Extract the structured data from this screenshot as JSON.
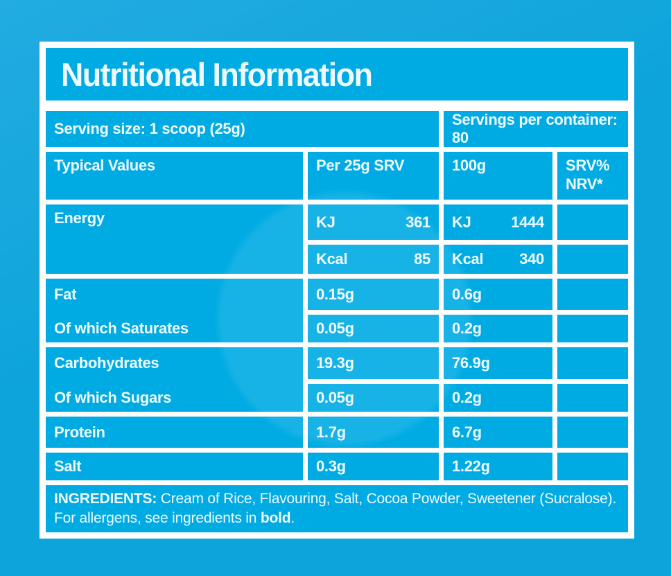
{
  "colors": {
    "background": "#0DA4DB",
    "panel_fill": "#00ABE3",
    "grid_line": "#FFFFFF",
    "text": "#EFFAFE"
  },
  "label": {
    "title": "Nutritional Information",
    "serving": {
      "serving_size": "Serving size: 1 scoop (25g)",
      "servings_per_container": "Servings per container: 80"
    },
    "header": {
      "typical_values": "Typical Values",
      "per_srv": "Per 25g SRV",
      "per_100g": "100g",
      "srv_nrv_line1": "SRV%",
      "srv_nrv_line2": "NRV*"
    },
    "rows": {
      "energy": {
        "label": "Energy",
        "kj_unit": "KJ",
        "kj_srv": "361",
        "kj_100g": "1444",
        "kcal_unit": "Kcal",
        "kcal_srv": "85",
        "kcal_100g": "340"
      },
      "fat": {
        "label": "Fat",
        "srv": "0.15g",
        "per_100g": "0.6g"
      },
      "saturates": {
        "label": "Of which Saturates",
        "srv": "0.05g",
        "per_100g": "0.2g"
      },
      "carbohydrates": {
        "label": "Carbohydrates",
        "srv": "19.3g",
        "per_100g": "76.9g"
      },
      "sugars": {
        "label": "Of which Sugars",
        "srv": "0.05g",
        "per_100g": "0.2g"
      },
      "protein": {
        "label": "Protein",
        "srv": "1.7g",
        "per_100g": "6.7g"
      },
      "salt": {
        "label": "Salt",
        "srv": "0.3g",
        "per_100g": "1.22g"
      }
    },
    "ingredients": {
      "heading": "INGREDIENTS:",
      "list": " Cream of Rice, Flavouring, Salt, Cocoa Powder, Sweetener (Sucralose).",
      "allergen_prefix": "For allergens, see ingredients in ",
      "allergen_bold": "bold",
      "allergen_suffix": "."
    }
  }
}
